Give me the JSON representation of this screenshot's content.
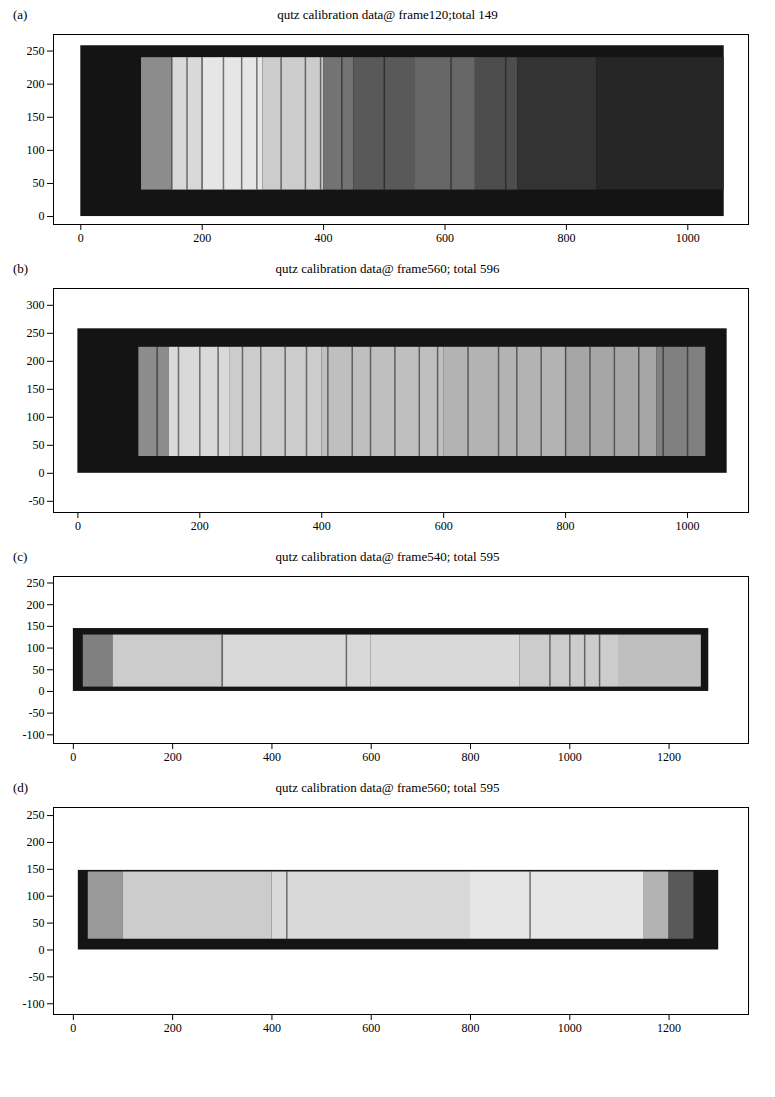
{
  "chart_data": [
    {
      "type": "heatmap",
      "panel": "(a)",
      "title": "qutz calibration data@ frame120;total 149",
      "xlim": [
        -45,
        1100
      ],
      "ylim": [
        -12,
        275
      ],
      "xticks": [
        0,
        200,
        400,
        600,
        800,
        1000
      ],
      "yticks": [
        0,
        50,
        100,
        150,
        200,
        250
      ],
      "intensity_range": [
        0,
        1
      ],
      "box": {
        "x": [
          0,
          1060
        ],
        "y": [
          0,
          258
        ],
        "intensity": 0.08
      },
      "illuminated": {
        "y": [
          40,
          240
        ]
      },
      "profile": {
        "x_edges": [
          100,
          150,
          200,
          300,
          400,
          450,
          550,
          650,
          720,
          850,
          1060
        ],
        "intensity": [
          0.55,
          0.85,
          0.9,
          0.8,
          0.45,
          0.35,
          0.4,
          0.3,
          0.2,
          0.15
        ]
      },
      "lines": [
        150,
        175,
        200,
        235,
        265,
        290,
        330,
        370,
        395,
        430,
        500,
        610,
        700
      ]
    },
    {
      "type": "heatmap",
      "panel": "(b)",
      "title": "qutz calibration data@ frame560; total 596",
      "xlim": [
        -40,
        1100
      ],
      "ylim": [
        -70,
        330
      ],
      "xticks": [
        0,
        200,
        400,
        600,
        800,
        1000
      ],
      "yticks": [
        -50,
        0,
        50,
        100,
        150,
        200,
        250,
        300
      ],
      "intensity_range": [
        0,
        1
      ],
      "box": {
        "x": [
          0,
          1065
        ],
        "y": [
          0,
          258
        ],
        "intensity": 0.08
      },
      "illuminated": {
        "y": [
          30,
          225
        ]
      },
      "profile": {
        "x_edges": [
          100,
          150,
          250,
          400,
          600,
          800,
          950,
          1030
        ],
        "intensity": [
          0.55,
          0.85,
          0.8,
          0.75,
          0.7,
          0.65,
          0.5
        ]
      },
      "lines": [
        130,
        165,
        200,
        230,
        270,
        300,
        340,
        375,
        410,
        450,
        480,
        520,
        560,
        590,
        640,
        690,
        720,
        760,
        800,
        840,
        880,
        920,
        960,
        1000
      ]
    },
    {
      "type": "heatmap",
      "panel": "(c)",
      "title": "qutz calibration data@ frame540; total 595",
      "xlim": [
        -40,
        1360
      ],
      "ylim": [
        -120,
        265
      ],
      "xticks": [
        0,
        200,
        400,
        600,
        800,
        1000,
        1200
      ],
      "yticks": [
        -100,
        -50,
        0,
        50,
        100,
        150,
        200,
        250
      ],
      "intensity_range": [
        0,
        1
      ],
      "box": {
        "x": [
          0,
          1280
        ],
        "y": [
          0,
          145
        ],
        "intensity": 0.08
      },
      "illuminated": {
        "y": [
          10,
          130
        ]
      },
      "profile": {
        "x_edges": [
          20,
          80,
          300,
          600,
          900,
          1100,
          1265
        ],
        "intensity": [
          0.5,
          0.8,
          0.85,
          0.85,
          0.8,
          0.75
        ]
      },
      "lines": [
        300,
        550,
        960,
        1000,
        1030,
        1060
      ]
    },
    {
      "type": "heatmap",
      "panel": "(d)",
      "title": "qutz calibration data@ frame560; total 595",
      "xlim": [
        -40,
        1360
      ],
      "ylim": [
        -120,
        265
      ],
      "xticks": [
        0,
        200,
        400,
        600,
        800,
        1000,
        1200
      ],
      "yticks": [
        -100,
        -50,
        0,
        50,
        100,
        150,
        200,
        250
      ],
      "intensity_range": [
        0,
        1
      ],
      "box": {
        "x": [
          10,
          1300
        ],
        "y": [
          0,
          148
        ],
        "intensity": 0.08
      },
      "illuminated": {
        "y": [
          20,
          145
        ]
      },
      "profile": {
        "x_edges": [
          30,
          100,
          400,
          800,
          1150,
          1200,
          1250
        ],
        "intensity": [
          0.6,
          0.8,
          0.85,
          0.9,
          0.7,
          0.35
        ]
      },
      "lines": [
        430,
        920
      ]
    }
  ]
}
